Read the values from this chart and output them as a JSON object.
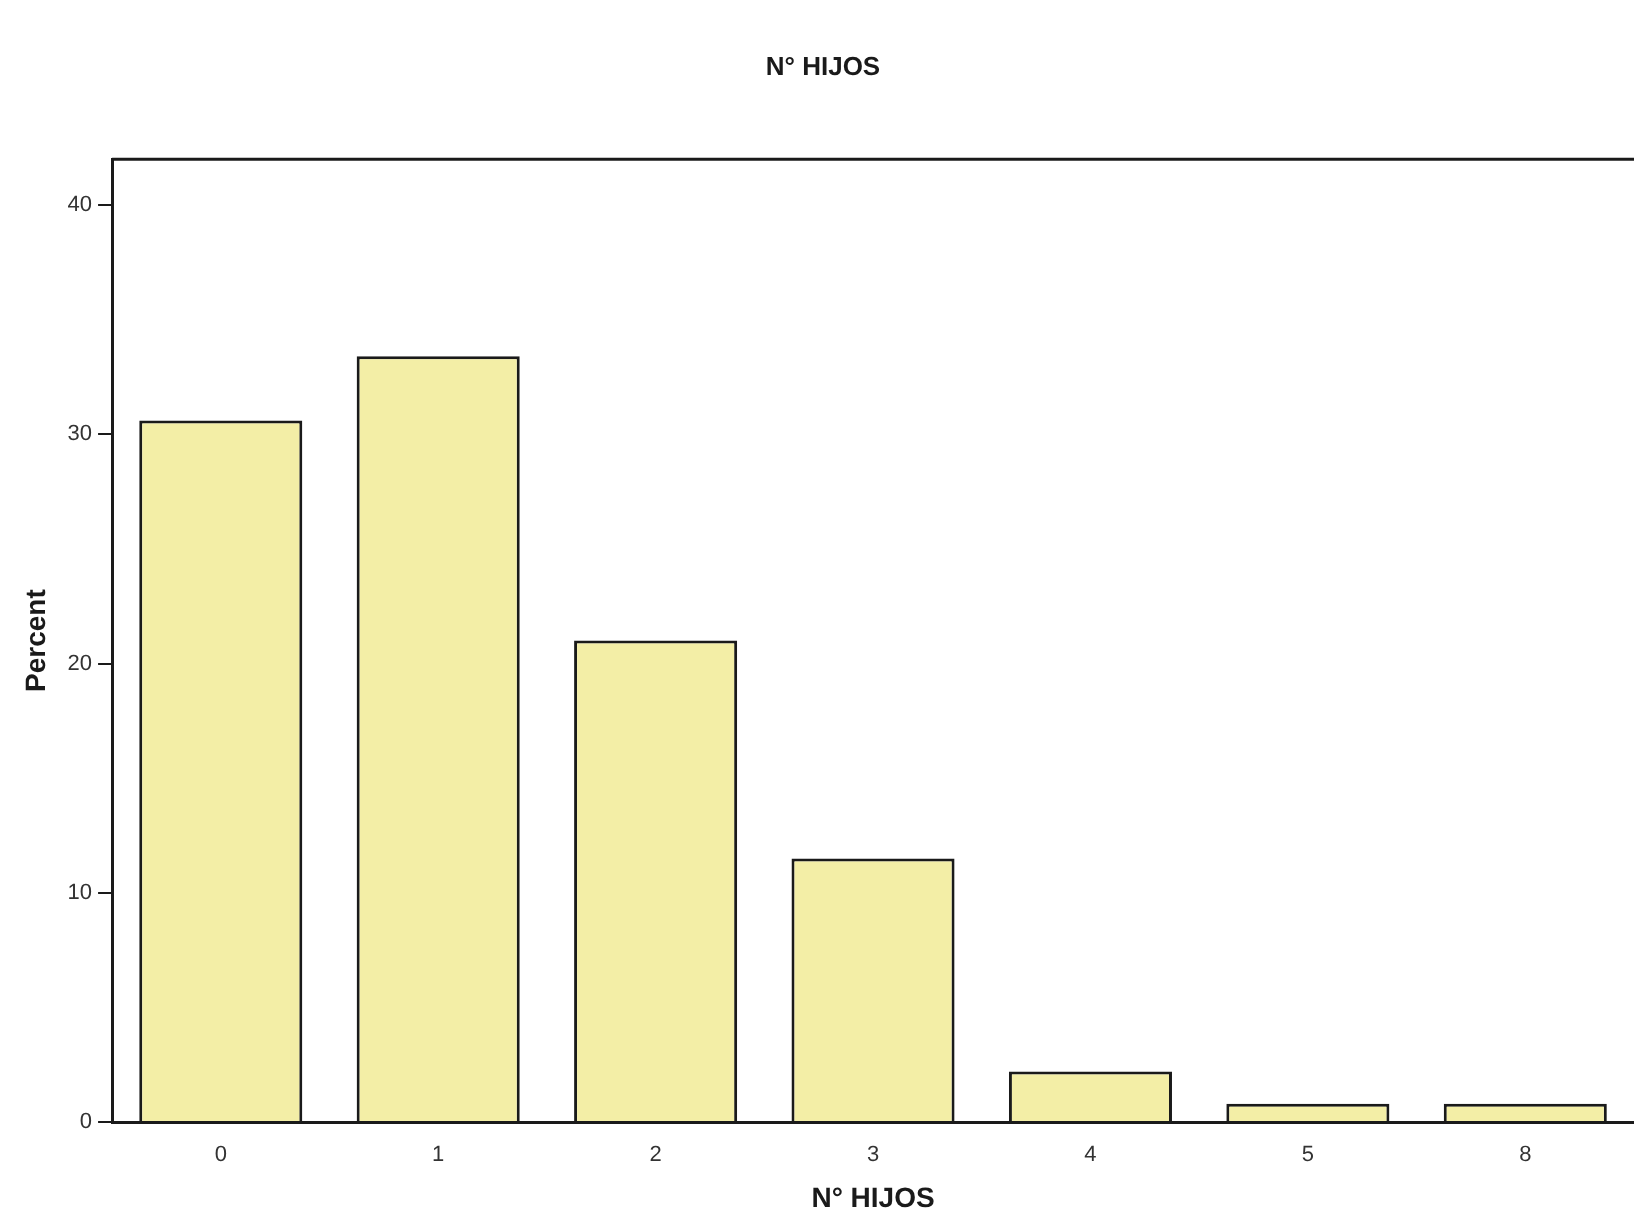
{
  "chart_data": {
    "type": "bar",
    "title": "N° HIJOS",
    "xlabel": "N° HIJOS",
    "ylabel": "Percent",
    "categories": [
      "0",
      "1",
      "2",
      "3",
      "4",
      "5",
      "8"
    ],
    "values": [
      30.6,
      33.4,
      21.0,
      11.5,
      2.2,
      0.8,
      0.8
    ],
    "color": "#f3eea6",
    "ylim": [
      0,
      42
    ],
    "yticks": [
      0,
      10,
      20,
      30,
      40
    ],
    "grid": false,
    "legend": false
  }
}
